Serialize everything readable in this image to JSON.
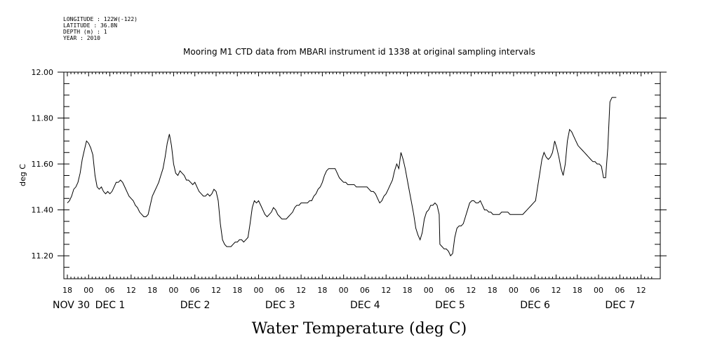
{
  "meta": [
    "LONGITUDE : 122W(-122)",
    "LATITUDE : 36.8N",
    "DEPTH (m) : 1",
    "YEAR : 2010"
  ],
  "chart_data": {
    "type": "line",
    "title": "Mooring M1 CTD data from MBARI instrument id 1338 at original sampling intervals",
    "xlabel": "Water Temperature (deg C)",
    "ylabel": "deg C",
    "ylim": [
      11.1,
      12.0
    ],
    "yticks": [
      11.2,
      11.4,
      11.6,
      11.8,
      12.0
    ],
    "ytick_labels": [
      "11.20",
      "11.40",
      "11.60",
      "11.80",
      "12.00"
    ],
    "x_unit": "hours since Nov 29 18:00",
    "xlim": [
      0,
      165.5
    ],
    "hour_ticks": [
      {
        "x": 0,
        "label": "18"
      },
      {
        "x": 6,
        "label": "00"
      },
      {
        "x": 12,
        "label": "06"
      },
      {
        "x": 18,
        "label": "12"
      },
      {
        "x": 24,
        "label": "18"
      },
      {
        "x": 30,
        "label": "00"
      },
      {
        "x": 36,
        "label": "06"
      },
      {
        "x": 42,
        "label": "12"
      },
      {
        "x": 48,
        "label": "18"
      },
      {
        "x": 54,
        "label": "00"
      },
      {
        "x": 60,
        "label": "06"
      },
      {
        "x": 66,
        "label": "12"
      },
      {
        "x": 72,
        "label": "18"
      },
      {
        "x": 78,
        "label": "00"
      },
      {
        "x": 84,
        "label": "06"
      },
      {
        "x": 90,
        "label": "12"
      },
      {
        "x": 96,
        "label": "18"
      },
      {
        "x": 102,
        "label": "00"
      },
      {
        "x": 108,
        "label": "06"
      },
      {
        "x": 114,
        "label": "12"
      },
      {
        "x": 120,
        "label": "18"
      },
      {
        "x": 126,
        "label": "00"
      },
      {
        "x": 132,
        "label": "06"
      },
      {
        "x": 138,
        "label": "12"
      },
      {
        "x": 144,
        "label": "18"
      },
      {
        "x": 150,
        "label": "00"
      },
      {
        "x": 156,
        "label": "06"
      },
      {
        "x": 162,
        "label": "12"
      }
    ],
    "day_labels": [
      {
        "x": 0,
        "label": "NOV 30"
      },
      {
        "x": 12,
        "label": "DEC  1"
      },
      {
        "x": 36,
        "label": "DEC  2"
      },
      {
        "x": 60,
        "label": "DEC  3"
      },
      {
        "x": 84,
        "label": "DEC  4"
      },
      {
        "x": 108,
        "label": "DEC  5"
      },
      {
        "x": 132,
        "label": "DEC  6"
      },
      {
        "x": 156,
        "label": "DEC  7"
      }
    ],
    "series": [
      {
        "values": [
          [
            0.0,
            11.43
          ],
          [
            0.6,
            11.44
          ],
          [
            1.2,
            11.46
          ],
          [
            1.8,
            11.49
          ],
          [
            2.4,
            11.5
          ],
          [
            3.0,
            11.52
          ],
          [
            3.6,
            11.56
          ],
          [
            4.2,
            11.62
          ],
          [
            4.8,
            11.66
          ],
          [
            5.4,
            11.7
          ],
          [
            6.0,
            11.69
          ],
          [
            6.6,
            11.67
          ],
          [
            7.2,
            11.64
          ],
          [
            7.8,
            11.55
          ],
          [
            8.4,
            11.5
          ],
          [
            9.0,
            11.49
          ],
          [
            9.6,
            11.5
          ],
          [
            10.2,
            11.48
          ],
          [
            10.8,
            11.47
          ],
          [
            11.4,
            11.48
          ],
          [
            12.0,
            11.47
          ],
          [
            12.6,
            11.48
          ],
          [
            13.2,
            11.5
          ],
          [
            13.8,
            11.52
          ],
          [
            14.4,
            11.52
          ],
          [
            15.0,
            11.53
          ],
          [
            15.6,
            11.52
          ],
          [
            16.2,
            11.5
          ],
          [
            16.8,
            11.48
          ],
          [
            17.4,
            11.46
          ],
          [
            18.0,
            11.45
          ],
          [
            18.6,
            11.44
          ],
          [
            19.2,
            11.42
          ],
          [
            19.8,
            11.41
          ],
          [
            20.4,
            11.39
          ],
          [
            21.0,
            11.38
          ],
          [
            21.6,
            11.37
          ],
          [
            22.2,
            11.37
          ],
          [
            22.8,
            11.38
          ],
          [
            23.4,
            11.42
          ],
          [
            24.0,
            11.46
          ],
          [
            24.6,
            11.48
          ],
          [
            25.2,
            11.5
          ],
          [
            25.8,
            11.52
          ],
          [
            26.4,
            11.55
          ],
          [
            27.0,
            11.58
          ],
          [
            27.6,
            11.63
          ],
          [
            28.2,
            11.69
          ],
          [
            28.8,
            11.73
          ],
          [
            29.4,
            11.68
          ],
          [
            30.0,
            11.6
          ],
          [
            30.6,
            11.56
          ],
          [
            31.2,
            11.55
          ],
          [
            31.8,
            11.57
          ],
          [
            32.4,
            11.56
          ],
          [
            33.0,
            11.55
          ],
          [
            33.6,
            11.53
          ],
          [
            34.2,
            11.53
          ],
          [
            34.8,
            11.52
          ],
          [
            35.4,
            11.51
          ],
          [
            36.0,
            11.52
          ],
          [
            36.6,
            11.5
          ],
          [
            37.2,
            11.48
          ],
          [
            37.8,
            11.47
          ],
          [
            38.4,
            11.46
          ],
          [
            39.0,
            11.46
          ],
          [
            39.6,
            11.47
          ],
          [
            40.2,
            11.46
          ],
          [
            40.8,
            11.47
          ],
          [
            41.4,
            11.49
          ],
          [
            42.0,
            11.48
          ],
          [
            42.6,
            11.44
          ],
          [
            43.2,
            11.34
          ],
          [
            43.8,
            11.27
          ],
          [
            44.4,
            11.25
          ],
          [
            45.0,
            11.24
          ],
          [
            45.6,
            11.24
          ],
          [
            46.2,
            11.24
          ],
          [
            46.8,
            11.25
          ],
          [
            47.4,
            11.26
          ],
          [
            48.0,
            11.26
          ],
          [
            48.6,
            11.27
          ],
          [
            49.2,
            11.27
          ],
          [
            49.8,
            11.26
          ],
          [
            50.4,
            11.27
          ],
          [
            51.0,
            11.28
          ],
          [
            51.6,
            11.34
          ],
          [
            52.2,
            11.41
          ],
          [
            52.8,
            11.44
          ],
          [
            53.4,
            11.43
          ],
          [
            54.0,
            11.44
          ],
          [
            54.6,
            11.42
          ],
          [
            55.2,
            11.4
          ],
          [
            55.8,
            11.38
          ],
          [
            56.4,
            11.37
          ],
          [
            57.0,
            11.38
          ],
          [
            57.6,
            11.39
          ],
          [
            58.2,
            11.41
          ],
          [
            58.8,
            11.4
          ],
          [
            59.4,
            11.38
          ],
          [
            60.0,
            11.37
          ],
          [
            60.6,
            11.36
          ],
          [
            61.2,
            11.36
          ],
          [
            61.8,
            11.36
          ],
          [
            62.4,
            11.37
          ],
          [
            63.0,
            11.38
          ],
          [
            63.6,
            11.39
          ],
          [
            64.2,
            11.41
          ],
          [
            64.8,
            11.42
          ],
          [
            65.4,
            11.42
          ],
          [
            66.0,
            11.43
          ],
          [
            66.6,
            11.43
          ],
          [
            67.2,
            11.43
          ],
          [
            67.8,
            11.43
          ],
          [
            68.4,
            11.44
          ],
          [
            69.0,
            11.44
          ],
          [
            69.6,
            11.46
          ],
          [
            70.2,
            11.47
          ],
          [
            70.8,
            11.49
          ],
          [
            71.4,
            11.5
          ],
          [
            72.0,
            11.52
          ],
          [
            72.6,
            11.55
          ],
          [
            73.2,
            11.57
          ],
          [
            73.8,
            11.58
          ],
          [
            74.4,
            11.58
          ],
          [
            75.0,
            11.58
          ],
          [
            75.6,
            11.58
          ],
          [
            76.2,
            11.56
          ],
          [
            76.8,
            11.54
          ],
          [
            77.4,
            11.53
          ],
          [
            78.0,
            11.52
          ],
          [
            78.6,
            11.52
          ],
          [
            79.2,
            11.51
          ],
          [
            79.8,
            11.51
          ],
          [
            80.4,
            11.51
          ],
          [
            81.0,
            11.51
          ],
          [
            81.6,
            11.5
          ],
          [
            82.2,
            11.5
          ],
          [
            82.8,
            11.5
          ],
          [
            83.4,
            11.5
          ],
          [
            84.0,
            11.5
          ],
          [
            84.6,
            11.5
          ],
          [
            85.2,
            11.49
          ],
          [
            85.8,
            11.48
          ],
          [
            86.4,
            11.48
          ],
          [
            87.0,
            11.47
          ],
          [
            87.6,
            11.45
          ],
          [
            88.2,
            11.43
          ],
          [
            88.8,
            11.44
          ],
          [
            89.4,
            11.46
          ],
          [
            90.0,
            11.47
          ],
          [
            90.6,
            11.49
          ],
          [
            91.2,
            11.51
          ],
          [
            91.8,
            11.53
          ],
          [
            92.4,
            11.57
          ],
          [
            93.0,
            11.6
          ],
          [
            93.6,
            11.58
          ],
          [
            94.2,
            11.65
          ],
          [
            94.8,
            11.62
          ],
          [
            95.4,
            11.58
          ],
          [
            96.0,
            11.53
          ],
          [
            96.6,
            11.48
          ],
          [
            97.2,
            11.43
          ],
          [
            97.8,
            11.38
          ],
          [
            98.4,
            11.32
          ],
          [
            99.0,
            11.29
          ],
          [
            99.6,
            11.27
          ],
          [
            100.2,
            11.3
          ],
          [
            100.8,
            11.36
          ],
          [
            101.4,
            11.39
          ],
          [
            102.0,
            11.4
          ],
          [
            102.6,
            11.42
          ],
          [
            103.2,
            11.42
          ],
          [
            103.8,
            11.43
          ],
          [
            104.4,
            11.42
          ],
          [
            105.0,
            11.38
          ],
          [
            105.2,
            11.25
          ],
          [
            105.8,
            11.24
          ],
          [
            106.4,
            11.23
          ],
          [
            107.0,
            11.23
          ],
          [
            107.6,
            11.22
          ],
          [
            108.2,
            11.2
          ],
          [
            108.8,
            11.21
          ],
          [
            109.4,
            11.28
          ],
          [
            110.0,
            11.32
          ],
          [
            110.6,
            11.33
          ],
          [
            111.2,
            11.33
          ],
          [
            111.8,
            11.34
          ],
          [
            112.4,
            11.37
          ],
          [
            113.0,
            11.4
          ],
          [
            113.6,
            11.43
          ],
          [
            114.2,
            11.44
          ],
          [
            114.8,
            11.44
          ],
          [
            115.4,
            11.43
          ],
          [
            116.0,
            11.43
          ],
          [
            116.6,
            11.44
          ],
          [
            117.2,
            11.42
          ],
          [
            117.8,
            11.4
          ],
          [
            118.4,
            11.4
          ],
          [
            119.0,
            11.39
          ],
          [
            119.6,
            11.39
          ],
          [
            120.2,
            11.38
          ],
          [
            120.8,
            11.38
          ],
          [
            121.4,
            11.38
          ],
          [
            122.0,
            11.38
          ],
          [
            122.6,
            11.39
          ],
          [
            123.2,
            11.39
          ],
          [
            123.8,
            11.39
          ],
          [
            124.4,
            11.39
          ],
          [
            125.0,
            11.38
          ],
          [
            125.6,
            11.38
          ],
          [
            126.2,
            11.38
          ],
          [
            126.8,
            11.38
          ],
          [
            127.4,
            11.38
          ],
          [
            128.0,
            11.38
          ],
          [
            128.6,
            11.38
          ],
          [
            129.2,
            11.39
          ],
          [
            129.8,
            11.4
          ],
          [
            130.4,
            11.41
          ],
          [
            131.0,
            11.42
          ],
          [
            131.6,
            11.43
          ],
          [
            132.2,
            11.44
          ],
          [
            132.8,
            11.5
          ],
          [
            133.4,
            11.56
          ],
          [
            134.0,
            11.62
          ],
          [
            134.6,
            11.65
          ],
          [
            135.2,
            11.63
          ],
          [
            135.8,
            11.62
          ],
          [
            136.4,
            11.63
          ],
          [
            137.0,
            11.65
          ],
          [
            137.6,
            11.7
          ],
          [
            138.2,
            11.67
          ],
          [
            138.8,
            11.63
          ],
          [
            139.4,
            11.58
          ],
          [
            140.0,
            11.55
          ],
          [
            140.6,
            11.6
          ],
          [
            141.2,
            11.7
          ],
          [
            141.8,
            11.75
          ],
          [
            142.4,
            11.74
          ],
          [
            143.0,
            11.72
          ],
          [
            143.6,
            11.7
          ],
          [
            144.2,
            11.68
          ],
          [
            144.8,
            11.67
          ],
          [
            145.4,
            11.66
          ],
          [
            146.0,
            11.65
          ],
          [
            146.6,
            11.64
          ],
          [
            147.2,
            11.63
          ],
          [
            147.8,
            11.62
          ],
          [
            148.4,
            11.61
          ],
          [
            149.0,
            11.61
          ],
          [
            149.6,
            11.6
          ],
          [
            150.2,
            11.6
          ],
          [
            150.8,
            11.59
          ],
          [
            151.4,
            11.54
          ],
          [
            152.0,
            11.54
          ],
          [
            152.6,
            11.67
          ],
          [
            153.2,
            11.87
          ],
          [
            153.8,
            11.89
          ],
          [
            154.4,
            11.89
          ],
          [
            155.0,
            11.89
          ]
        ]
      }
    ]
  }
}
